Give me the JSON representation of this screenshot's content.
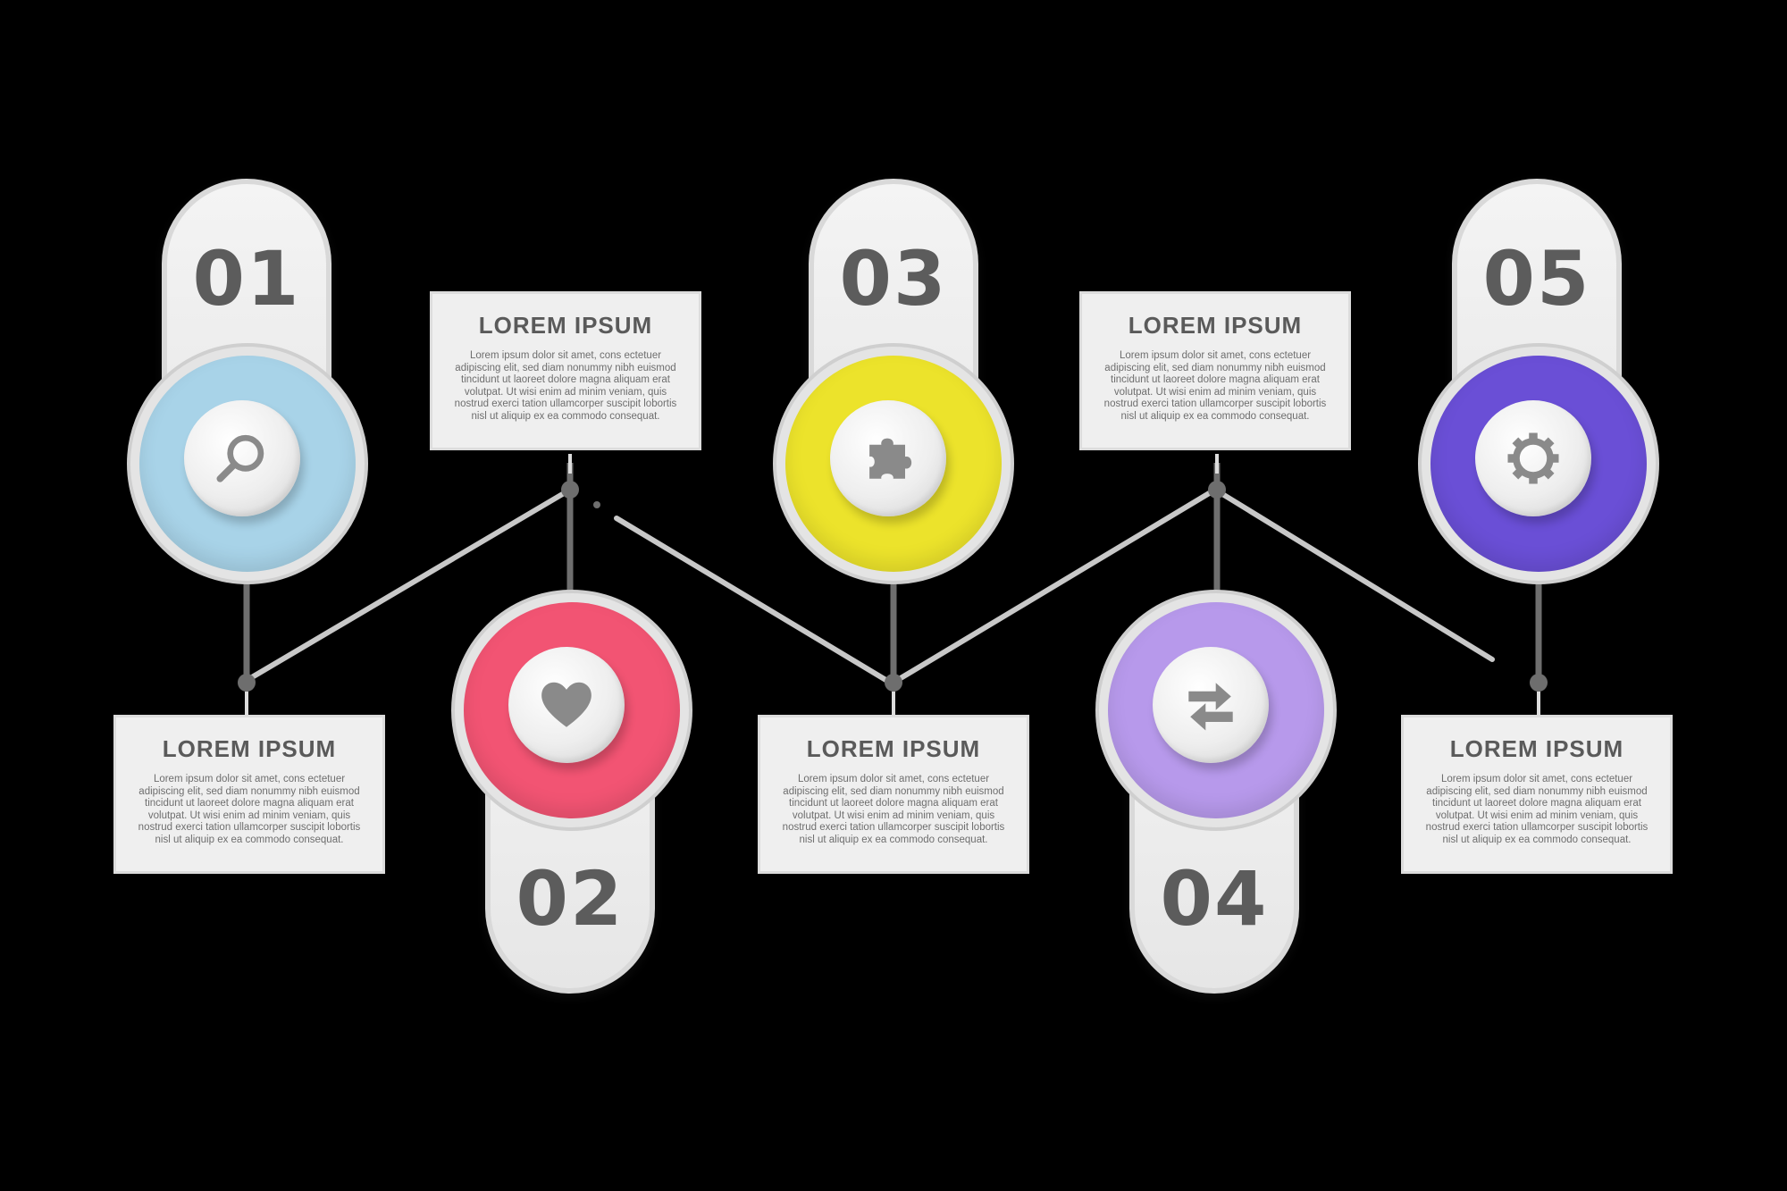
{
  "colors": {
    "step_01": "#a8d3e8",
    "step_02": "#f25473",
    "step_03": "#ece32b",
    "step_04": "#b799eb",
    "step_05": "#6a4fd6",
    "connector": "#c8c8c8",
    "text_dark": "#5c5c5c"
  },
  "steps": [
    {
      "number": "01",
      "icon": "search-icon",
      "title": "LOREM IPSUM",
      "body": "Lorem ipsum dolor sit amet, cons ectetuer adipiscing elit, sed diam nonummy nibh euismod tincidunt ut laoreet dolore magna aliquam erat volutpat. Ut wisi enim ad minim veniam, quis nostrud exerci tation ullamcorper suscipit lobortis nisl ut aliquip ex ea commodo consequat."
    },
    {
      "number": "02",
      "icon": "heart-icon",
      "title": "LOREM IPSUM",
      "body": "Lorem ipsum dolor sit amet, cons ectetuer adipiscing elit, sed diam nonummy nibh euismod tincidunt ut laoreet dolore magna aliquam erat volutpat. Ut wisi enim ad minim veniam, quis nostrud exerci tation ullamcorper suscipit lobortis nisl ut aliquip ex ea commodo consequat."
    },
    {
      "number": "03",
      "icon": "puzzle-icon",
      "title": "LOREM IPSUM",
      "body": "Lorem ipsum dolor sit amet, cons ectetuer adipiscing elit, sed diam nonummy nibh euismod tincidunt ut laoreet dolore magna aliquam erat volutpat. Ut wisi enim ad minim veniam, quis nostrud exerci tation ullamcorper suscipit lobortis nisl ut aliquip ex ea commodo consequat."
    },
    {
      "number": "04",
      "icon": "swap-arrows-icon",
      "title": "LOREM IPSUM",
      "body": "Lorem ipsum dolor sit amet, cons ectetuer adipiscing elit, sed diam nonummy nibh euismod tincidunt ut laoreet dolore magna aliquam erat volutpat. Ut wisi enim ad minim veniam, quis nostrud exerci tation ullamcorper suscipit lobortis nisl ut aliquip ex ea commodo consequat."
    },
    {
      "number": "05",
      "icon": "gear-icon",
      "title": "LOREM IPSUM",
      "body": "Lorem ipsum dolor sit amet, cons ectetuer adipiscing elit, sed diam nonummy nibh euismod tincidunt ut laoreet dolore magna aliquam erat volutpat. Ut wisi enim ad minim veniam, quis nostrud exerci tation ullamcorper suscipit lobortis nisl ut aliquip ex ea commodo consequat."
    }
  ]
}
